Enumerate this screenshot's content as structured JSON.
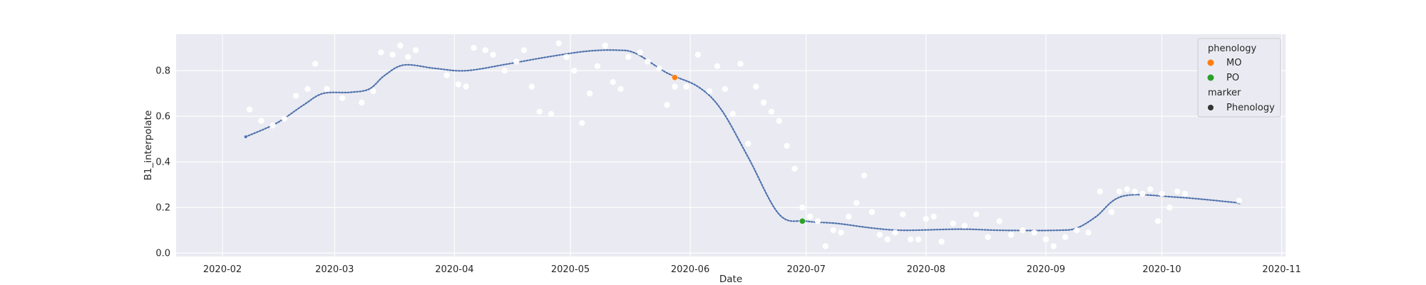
{
  "chart_data": {
    "type": "scatter",
    "xlabel": "Date",
    "ylabel": "B1_interpolate",
    "xlim": [
      "2020-01-20",
      "2020-11-02"
    ],
    "ylim": [
      -0.015,
      0.96
    ],
    "x_ticks": [
      "2020-02-01",
      "2020-03-01",
      "2020-04-01",
      "2020-05-01",
      "2020-06-01",
      "2020-07-01",
      "2020-08-01",
      "2020-09-01",
      "2020-10-01",
      "2020-11-01"
    ],
    "x_tick_labels": [
      "2020-02",
      "2020-03",
      "2020-04",
      "2020-05",
      "2020-06",
      "2020-07",
      "2020-08",
      "2020-09",
      "2020-10",
      "2020-11"
    ],
    "y_ticks": [
      0.0,
      0.2,
      0.4,
      0.6,
      0.8
    ],
    "y_tick_labels": [
      "0.0",
      "0.2",
      "0.4",
      "0.6",
      "0.8"
    ],
    "grid": true,
    "legend": {
      "placement": "upper right",
      "groups": [
        {
          "title": "phenology",
          "entries": [
            {
              "label": "MO",
              "color": "#ff7f0e"
            },
            {
              "label": "PO",
              "color": "#2ca02c"
            }
          ]
        },
        {
          "title": "marker",
          "entries": [
            {
              "label": "Phenology",
              "color": "#333333"
            }
          ]
        }
      ]
    },
    "colors": {
      "background": "#eaeaf2",
      "grid": "#ffffff",
      "observations": "#ffffff",
      "curve_line": "#7a7a7a",
      "curve_dots": "#4c72b0"
    },
    "series": [
      {
        "kind": "smoothed_curve",
        "points": [
          [
            "2020-02-07",
            0.51
          ],
          [
            "2020-02-15",
            0.57
          ],
          [
            "2020-02-22",
            0.65
          ],
          [
            "2020-02-27",
            0.7
          ],
          [
            "2020-03-05",
            0.705
          ],
          [
            "2020-03-10",
            0.72
          ],
          [
            "2020-03-14",
            0.78
          ],
          [
            "2020-03-19",
            0.825
          ],
          [
            "2020-03-27",
            0.81
          ],
          [
            "2020-04-04",
            0.8
          ],
          [
            "2020-04-15",
            0.83
          ],
          [
            "2020-04-25",
            0.86
          ],
          [
            "2020-05-05",
            0.885
          ],
          [
            "2020-05-13",
            0.89
          ],
          [
            "2020-05-18",
            0.875
          ],
          [
            "2020-05-26",
            0.79
          ],
          [
            "2020-06-03",
            0.73
          ],
          [
            "2020-06-09",
            0.63
          ],
          [
            "2020-06-16",
            0.42
          ],
          [
            "2020-06-24",
            0.17
          ],
          [
            "2020-07-01",
            0.14
          ],
          [
            "2020-07-09",
            0.13
          ],
          [
            "2020-07-18",
            0.11
          ],
          [
            "2020-07-26",
            0.1
          ],
          [
            "2020-08-10",
            0.105
          ],
          [
            "2020-08-20",
            0.1
          ],
          [
            "2020-09-04",
            0.1
          ],
          [
            "2020-09-09",
            0.11
          ],
          [
            "2020-09-14",
            0.16
          ],
          [
            "2020-09-21",
            0.25
          ],
          [
            "2020-10-05",
            0.245
          ],
          [
            "2020-10-21",
            0.22
          ]
        ]
      },
      {
        "kind": "observations",
        "points": [
          [
            "2020-02-08",
            0.63
          ],
          [
            "2020-02-11",
            0.58
          ],
          [
            "2020-02-14",
            0.56
          ],
          [
            "2020-02-17",
            0.59
          ],
          [
            "2020-02-20",
            0.69
          ],
          [
            "2020-02-23",
            0.72
          ],
          [
            "2020-02-25",
            0.83
          ],
          [
            "2020-02-28",
            0.72
          ],
          [
            "2020-03-03",
            0.68
          ],
          [
            "2020-03-08",
            0.66
          ],
          [
            "2020-03-11",
            0.71
          ],
          [
            "2020-03-13",
            0.88
          ],
          [
            "2020-03-16",
            0.87
          ],
          [
            "2020-03-18",
            0.91
          ],
          [
            "2020-03-20",
            0.86
          ],
          [
            "2020-03-22",
            0.89
          ],
          [
            "2020-03-30",
            0.78
          ],
          [
            "2020-04-02",
            0.74
          ],
          [
            "2020-04-04",
            0.73
          ],
          [
            "2020-04-06",
            0.9
          ],
          [
            "2020-04-09",
            0.89
          ],
          [
            "2020-04-11",
            0.87
          ],
          [
            "2020-04-14",
            0.8
          ],
          [
            "2020-04-17",
            0.84
          ],
          [
            "2020-04-19",
            0.89
          ],
          [
            "2020-04-21",
            0.73
          ],
          [
            "2020-04-23",
            0.62
          ],
          [
            "2020-04-26",
            0.61
          ],
          [
            "2020-04-28",
            0.92
          ],
          [
            "2020-04-30",
            0.86
          ],
          [
            "2020-05-02",
            0.8
          ],
          [
            "2020-05-04",
            0.57
          ],
          [
            "2020-05-06",
            0.7
          ],
          [
            "2020-05-08",
            0.82
          ],
          [
            "2020-05-10",
            0.91
          ],
          [
            "2020-05-12",
            0.75
          ],
          [
            "2020-05-14",
            0.72
          ],
          [
            "2020-05-16",
            0.86
          ],
          [
            "2020-05-19",
            0.88
          ],
          [
            "2020-05-21",
            0.84
          ],
          [
            "2020-05-24",
            0.81
          ],
          [
            "2020-05-26",
            0.65
          ],
          [
            "2020-05-28",
            0.73
          ],
          [
            "2020-05-31",
            0.73
          ],
          [
            "2020-06-03",
            0.87
          ],
          [
            "2020-06-06",
            0.71
          ],
          [
            "2020-06-08",
            0.82
          ],
          [
            "2020-06-10",
            0.72
          ],
          [
            "2020-06-12",
            0.61
          ],
          [
            "2020-06-14",
            0.83
          ],
          [
            "2020-06-16",
            0.48
          ],
          [
            "2020-06-18",
            0.73
          ],
          [
            "2020-06-20",
            0.66
          ],
          [
            "2020-06-22",
            0.62
          ],
          [
            "2020-06-24",
            0.58
          ],
          [
            "2020-06-26",
            0.47
          ],
          [
            "2020-06-28",
            0.37
          ],
          [
            "2020-06-30",
            0.2
          ],
          [
            "2020-07-02",
            0.16
          ],
          [
            "2020-07-04",
            0.14
          ],
          [
            "2020-07-06",
            0.03
          ],
          [
            "2020-07-08",
            0.1
          ],
          [
            "2020-07-10",
            0.09
          ],
          [
            "2020-07-12",
            0.16
          ],
          [
            "2020-07-14",
            0.22
          ],
          [
            "2020-07-16",
            0.34
          ],
          [
            "2020-07-18",
            0.18
          ],
          [
            "2020-07-20",
            0.08
          ],
          [
            "2020-07-22",
            0.06
          ],
          [
            "2020-07-24",
            0.09
          ],
          [
            "2020-07-26",
            0.17
          ],
          [
            "2020-07-28",
            0.06
          ],
          [
            "2020-07-30",
            0.06
          ],
          [
            "2020-08-01",
            0.15
          ],
          [
            "2020-08-03",
            0.16
          ],
          [
            "2020-08-05",
            0.05
          ],
          [
            "2020-08-08",
            0.13
          ],
          [
            "2020-08-11",
            0.12
          ],
          [
            "2020-08-14",
            0.17
          ],
          [
            "2020-08-17",
            0.07
          ],
          [
            "2020-08-20",
            0.14
          ],
          [
            "2020-08-23",
            0.08
          ],
          [
            "2020-08-26",
            0.1
          ],
          [
            "2020-08-29",
            0.09
          ],
          [
            "2020-09-01",
            0.06
          ],
          [
            "2020-09-03",
            0.03
          ],
          [
            "2020-09-06",
            0.07
          ],
          [
            "2020-09-09",
            0.1
          ],
          [
            "2020-09-12",
            0.09
          ],
          [
            "2020-09-15",
            0.27
          ],
          [
            "2020-09-18",
            0.18
          ],
          [
            "2020-09-20",
            0.27
          ],
          [
            "2020-09-22",
            0.28
          ],
          [
            "2020-09-24",
            0.27
          ],
          [
            "2020-09-26",
            0.26
          ],
          [
            "2020-09-28",
            0.28
          ],
          [
            "2020-09-30",
            0.14
          ],
          [
            "2020-10-01",
            0.26
          ],
          [
            "2020-10-03",
            0.2
          ],
          [
            "2020-10-05",
            0.27
          ],
          [
            "2020-10-07",
            0.26
          ],
          [
            "2020-10-21",
            0.23
          ]
        ]
      },
      {
        "kind": "phenology",
        "points": [
          {
            "label": "MO",
            "x": "2020-05-28",
            "y": 0.77,
            "color": "#ff7f0e"
          },
          {
            "label": "PO",
            "x": "2020-06-30",
            "y": 0.14,
            "color": "#2ca02c"
          }
        ]
      }
    ]
  }
}
